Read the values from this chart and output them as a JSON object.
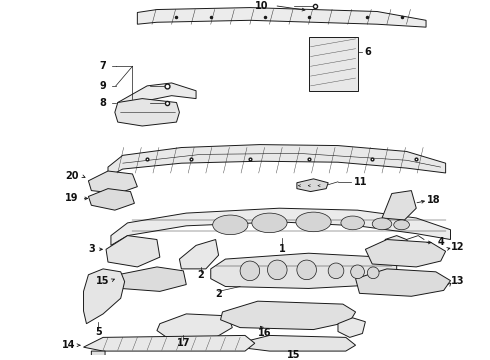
{
  "bg_color": "#ffffff",
  "line_color": "#1a1a1a",
  "label_color": "#111111",
  "fig_width": 4.9,
  "fig_height": 3.6,
  "dpi": 100,
  "lw": 0.7
}
